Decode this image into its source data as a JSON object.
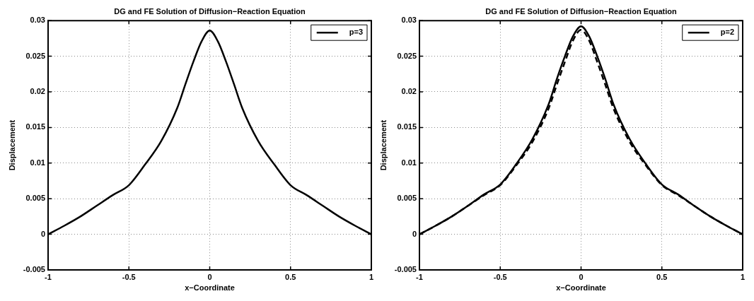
{
  "chart_data": [
    {
      "type": "line",
      "title": "DG and FE Solution of Diffusion−Reaction Equation",
      "xlabel": "x−Coordinate",
      "ylabel": "Displacement",
      "x": [
        -1,
        -0.9,
        -0.8,
        -0.7,
        -0.6,
        -0.5,
        -0.4,
        -0.3,
        -0.2,
        -0.15,
        -0.1,
        -0.05,
        0,
        0.05,
        0.1,
        0.15,
        0.2,
        0.3,
        0.4,
        0.5,
        0.6,
        0.7,
        0.8,
        0.9,
        1
      ],
      "series": [
        {
          "name": "p=3",
          "color": "#000000",
          "line_style": "solid",
          "values": [
            0,
            0.0012,
            0.0025,
            0.004,
            0.0055,
            0.0069,
            0.0098,
            0.0131,
            0.0178,
            0.0211,
            0.0243,
            0.0271,
            0.0286,
            0.0271,
            0.0243,
            0.0211,
            0.0178,
            0.0131,
            0.0098,
            0.0069,
            0.0055,
            0.004,
            0.0025,
            0.0012,
            0
          ]
        }
      ],
      "xlim": [
        -1,
        1
      ],
      "ylim": [
        -0.005,
        0.03
      ],
      "xticks": [
        -1,
        -0.5,
        0,
        0.5,
        1
      ],
      "yticks": [
        -0.005,
        0,
        0.005,
        0.01,
        0.015,
        0.02,
        0.025,
        0.03
      ],
      "grid": true,
      "legend": "top right"
    },
    {
      "type": "line",
      "title": "DG and FE Solution of Diffusion−Reaction Equation",
      "xlabel": "x−Coordinate",
      "ylabel": "Displacement",
      "x": [
        -1,
        -0.9,
        -0.8,
        -0.7,
        -0.6,
        -0.5,
        -0.4,
        -0.3,
        -0.2,
        -0.15,
        -0.1,
        -0.05,
        0,
        0.05,
        0.1,
        0.15,
        0.2,
        0.3,
        0.4,
        0.5,
        0.6,
        0.7,
        0.8,
        0.9,
        1
      ],
      "series": [
        {
          "name": "p=2",
          "color": "#000000",
          "line_style": "solid",
          "values": [
            0,
            0.0012,
            0.0025,
            0.004,
            0.0056,
            0.007,
            0.0099,
            0.0134,
            0.0183,
            0.0218,
            0.025,
            0.0278,
            0.0292,
            0.0278,
            0.025,
            0.0218,
            0.0183,
            0.0134,
            0.0099,
            0.007,
            0.0056,
            0.004,
            0.0025,
            0.0012,
            0
          ]
        },
        {
          "color": "#000000",
          "line_style": "dashed",
          "values": [
            0,
            0.0012,
            0.0025,
            0.004,
            0.0055,
            0.0069,
            0.0097,
            0.013,
            0.0177,
            0.021,
            0.0242,
            0.0272,
            0.0287,
            0.0272,
            0.0242,
            0.021,
            0.0177,
            0.013,
            0.0097,
            0.0069,
            0.0055,
            0.004,
            0.0025,
            0.0012,
            0
          ]
        }
      ],
      "xlim": [
        -1,
        1
      ],
      "ylim": [
        -0.005,
        0.03
      ],
      "xticks": [
        -1,
        -0.5,
        0,
        0.5,
        1
      ],
      "yticks": [
        -0.005,
        0,
        0.005,
        0.01,
        0.015,
        0.02,
        0.025,
        0.03
      ],
      "grid": true,
      "legend": "top right"
    }
  ]
}
